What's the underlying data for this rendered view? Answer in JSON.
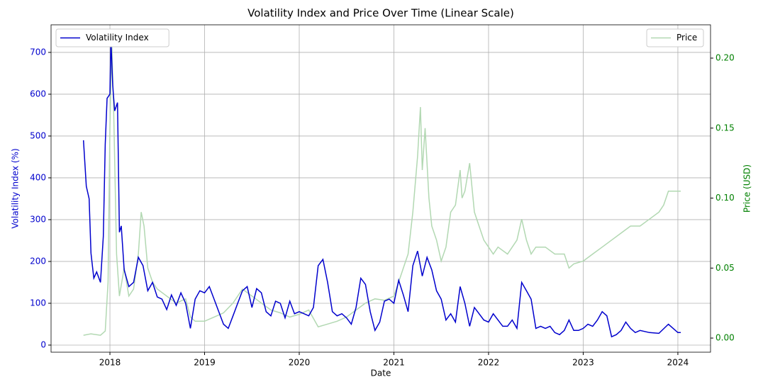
{
  "chart_data": {
    "type": "line",
    "title": "Volatility Index and Price Over Time (Linear Scale)",
    "xlabel": "Date",
    "ylabel": "Volatility Index (%)",
    "y2label": "Price (USD)",
    "xlim": [
      2017.378,
      2024.345
    ],
    "xticks": [
      2018,
      2019,
      2020,
      2021,
      2022,
      2023,
      2024
    ],
    "ylim": [
      -17,
      766
    ],
    "yticks": [
      0,
      100,
      200,
      300,
      400,
      500,
      600,
      700
    ],
    "y2lim": [
      -0.0101,
      0.2238
    ],
    "y2ticks": [
      {
        "value": 0,
        "label": "0.00"
      },
      0.05,
      {
        "value": 0.1,
        "label": "0.10"
      },
      0.15,
      {
        "value": 0.2,
        "label": "0.20"
      }
    ],
    "grid": true,
    "series": [
      {
        "name": "Volatility Index",
        "color": "#0000cd",
        "legend": "upper left",
        "x": [
          2017.72,
          2017.75,
          2017.78,
          2017.8,
          2017.83,
          2017.86,
          2017.9,
          2017.93,
          2017.95,
          2017.97,
          2018.0,
          2018.01,
          2018.03,
          2018.05,
          2018.08,
          2018.1,
          2018.12,
          2018.15,
          2018.2,
          2018.25,
          2018.3,
          2018.35,
          2018.4,
          2018.45,
          2018.5,
          2018.55,
          2018.6,
          2018.65,
          2018.7,
          2018.75,
          2018.8,
          2018.85,
          2018.9,
          2018.95,
          2019.0,
          2019.05,
          2019.1,
          2019.15,
          2019.2,
          2019.25,
          2019.3,
          2019.35,
          2019.4,
          2019.45,
          2019.5,
          2019.55,
          2019.6,
          2019.65,
          2019.7,
          2019.75,
          2019.8,
          2019.85,
          2019.9,
          2019.95,
          2020.0,
          2020.05,
          2020.1,
          2020.15,
          2020.2,
          2020.25,
          2020.3,
          2020.35,
          2020.4,
          2020.45,
          2020.5,
          2020.55,
          2020.6,
          2020.65,
          2020.7,
          2020.75,
          2020.8,
          2020.85,
          2020.9,
          2020.95,
          2021.0,
          2021.05,
          2021.1,
          2021.15,
          2021.2,
          2021.25,
          2021.3,
          2021.35,
          2021.4,
          2021.45,
          2021.5,
          2021.55,
          2021.6,
          2021.65,
          2021.7,
          2021.75,
          2021.8,
          2021.85,
          2021.9,
          2021.95,
          2022.0,
          2022.05,
          2022.1,
          2022.15,
          2022.2,
          2022.25,
          2022.3,
          2022.35,
          2022.4,
          2022.45,
          2022.5,
          2022.55,
          2022.6,
          2022.65,
          2022.7,
          2022.75,
          2022.8,
          2022.85,
          2022.9,
          2022.95,
          2023.0,
          2023.05,
          2023.1,
          2023.15,
          2023.2,
          2023.25,
          2023.3,
          2023.35,
          2023.4,
          2023.45,
          2023.5,
          2023.55,
          2023.6,
          2023.7,
          2023.8,
          2023.9,
          2023.95,
          2024.0,
          2024.03
        ],
        "values": [
          490,
          380,
          350,
          220,
          160,
          175,
          150,
          260,
          480,
          590,
          600,
          730,
          620,
          560,
          580,
          270,
          285,
          180,
          140,
          150,
          210,
          190,
          130,
          150,
          115,
          110,
          85,
          120,
          95,
          125,
          100,
          40,
          110,
          130,
          125,
          140,
          110,
          80,
          50,
          40,
          70,
          100,
          130,
          140,
          90,
          135,
          125,
          80,
          70,
          105,
          100,
          65,
          105,
          75,
          80,
          75,
          70,
          90,
          190,
          205,
          150,
          80,
          70,
          75,
          65,
          50,
          90,
          160,
          145,
          80,
          35,
          55,
          105,
          110,
          100,
          155,
          120,
          80,
          190,
          225,
          165,
          210,
          180,
          130,
          110,
          60,
          75,
          55,
          140,
          100,
          45,
          90,
          75,
          60,
          55,
          75,
          60,
          45,
          45,
          60,
          40,
          150,
          130,
          110,
          40,
          45,
          40,
          45,
          30,
          25,
          35,
          60,
          35,
          35,
          40,
          50,
          45,
          60,
          80,
          70,
          20,
          25,
          35,
          55,
          40,
          30,
          35,
          30,
          28,
          50,
          40,
          30,
          30
        ]
      },
      {
        "name": "Price",
        "color": "#b2d8b2",
        "axis": "y2",
        "legend": "upper right",
        "x": [
          2017.72,
          2017.8,
          2017.9,
          2017.95,
          2017.98,
          2018.0,
          2018.02,
          2018.04,
          2018.07,
          2018.1,
          2018.15,
          2018.2,
          2018.25,
          2018.3,
          2018.33,
          2018.36,
          2018.4,
          2018.45,
          2018.5,
          2018.6,
          2018.7,
          2018.8,
          2018.85,
          2018.9,
          2019.0,
          2019.1,
          2019.2,
          2019.3,
          2019.4,
          2019.5,
          2019.6,
          2019.7,
          2019.8,
          2019.9,
          2020.0,
          2020.1,
          2020.2,
          2020.3,
          2020.4,
          2020.5,
          2020.6,
          2020.7,
          2020.8,
          2020.9,
          2021.0,
          2021.05,
          2021.1,
          2021.15,
          2021.2,
          2021.25,
          2021.28,
          2021.3,
          2021.33,
          2021.37,
          2021.4,
          2021.45,
          2021.5,
          2021.55,
          2021.6,
          2021.65,
          2021.7,
          2021.72,
          2021.75,
          2021.8,
          2021.85,
          2021.9,
          2021.95,
          2022.0,
          2022.05,
          2022.1,
          2022.2,
          2022.3,
          2022.35,
          2022.4,
          2022.45,
          2022.5,
          2022.6,
          2022.7,
          2022.8,
          2022.85,
          2022.9,
          2023.0,
          2023.1,
          2023.2,
          2023.3,
          2023.4,
          2023.5,
          2023.6,
          2023.7,
          2023.8,
          2023.85,
          2023.9,
          2024.0,
          2024.03
        ],
        "values": [
          0.002,
          0.003,
          0.002,
          0.005,
          0.04,
          0.15,
          0.21,
          0.16,
          0.06,
          0.03,
          0.05,
          0.03,
          0.035,
          0.06,
          0.09,
          0.08,
          0.05,
          0.04,
          0.035,
          0.03,
          0.025,
          0.028,
          0.015,
          0.012,
          0.012,
          0.015,
          0.018,
          0.025,
          0.035,
          0.03,
          0.025,
          0.02,
          0.018,
          0.015,
          0.017,
          0.02,
          0.008,
          0.01,
          0.012,
          0.015,
          0.02,
          0.025,
          0.028,
          0.027,
          0.03,
          0.04,
          0.05,
          0.06,
          0.09,
          0.13,
          0.165,
          0.12,
          0.15,
          0.1,
          0.08,
          0.07,
          0.055,
          0.065,
          0.09,
          0.095,
          0.12,
          0.1,
          0.105,
          0.125,
          0.09,
          0.08,
          0.07,
          0.065,
          0.06,
          0.065,
          0.06,
          0.07,
          0.085,
          0.07,
          0.06,
          0.065,
          0.065,
          0.06,
          0.06,
          0.05,
          0.053,
          0.055,
          0.06,
          0.065,
          0.07,
          0.075,
          0.08,
          0.08,
          0.085,
          0.09,
          0.095,
          0.105,
          0.105,
          0.105
        ]
      }
    ]
  }
}
